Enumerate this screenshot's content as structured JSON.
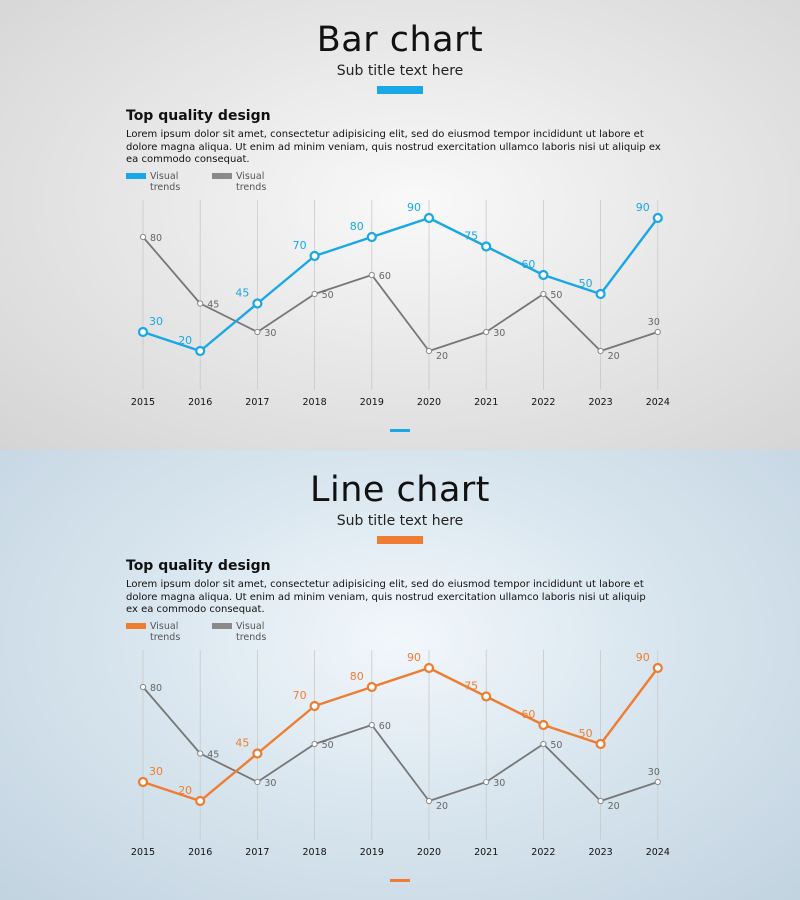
{
  "panels": [
    {
      "title": "Bar chart",
      "subtitle": "Sub title text here",
      "heading": "Top quality design",
      "body": "Lorem ipsum dolor sit amet, consectetur adipisicing elit, sed do eiusmod tempor incididunt ut labore et dolore magna aliqua. Ut enim ad minim veniam, quis nostrud exercitation ullamco laboris nisi ut aliquip ex ea commodo consequat.",
      "accent_color": "#1aa7e8",
      "secondary_color": "#8a8a8a",
      "legend": [
        {
          "label": "Visual trends",
          "color": "#1aa7e8"
        },
        {
          "label": "Visual trends",
          "color": "#8a8a8a"
        }
      ]
    },
    {
      "title": "Line chart",
      "subtitle": "Sub title text here",
      "heading": "Top quality design",
      "body": "Lorem ipsum dolor sit amet, consectetur adipisicing elit, sed do eiusmod tempor incididunt ut labore et dolore magna aliqua. Ut enim ad minim veniam, quis nostrud exercitation ullamco laboris nisi ut aliquip ex ea commodo consequat.",
      "accent_color": "#ee7d31",
      "secondary_color": "#8a8a8a",
      "legend": [
        {
          "label": "Visual trends",
          "color": "#ee7d31"
        },
        {
          "label": "Visual trends",
          "color": "#8a8a8a"
        }
      ]
    }
  ],
  "chart_data": [
    {
      "type": "line",
      "title": "Bar chart",
      "x": [
        "2015",
        "2016",
        "2017",
        "2018",
        "2019",
        "2020",
        "2021",
        "2022",
        "2023",
        "2024"
      ],
      "ylim": [
        0,
        100
      ],
      "grid": true,
      "series": [
        {
          "name": "Visual trends",
          "color": "#1aa7e8",
          "values": [
            30,
            20,
            45,
            70,
            80,
            90,
            75,
            60,
            50,
            90
          ]
        },
        {
          "name": "Visual trends",
          "color": "#777777",
          "values": [
            80,
            45,
            30,
            50,
            60,
            20,
            30,
            50,
            20,
            30
          ]
        }
      ]
    },
    {
      "type": "line",
      "title": "Line chart",
      "x": [
        "2015",
        "2016",
        "2017",
        "2018",
        "2019",
        "2020",
        "2021",
        "2022",
        "2023",
        "2024"
      ],
      "ylim": [
        0,
        100
      ],
      "grid": true,
      "series": [
        {
          "name": "Visual trends",
          "color": "#ee7d31",
          "values": [
            30,
            20,
            45,
            70,
            80,
            90,
            75,
            60,
            50,
            90
          ]
        },
        {
          "name": "Visual trends",
          "color": "#777777",
          "values": [
            80,
            45,
            30,
            50,
            60,
            20,
            30,
            50,
            20,
            30
          ]
        }
      ]
    }
  ]
}
